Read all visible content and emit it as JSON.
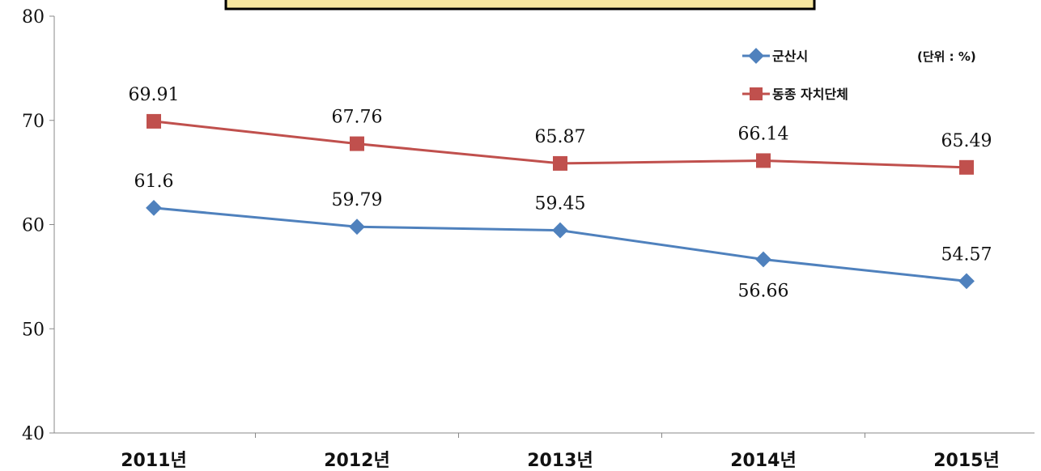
{
  "chart_data": {
    "type": "line",
    "categories": [
      "2011년",
      "2012년",
      "2013년",
      "2014년",
      "2015년"
    ],
    "series": [
      {
        "name": "군산시",
        "values": [
          61.6,
          59.79,
          59.45,
          56.66,
          54.57
        ],
        "labels": [
          "61.6",
          "59.79",
          "59.45",
          "56.66",
          "54.57"
        ],
        "color": "#4f81bd",
        "marker": "diamond"
      },
      {
        "name": "동종 자치단체",
        "values": [
          69.91,
          67.76,
          65.87,
          66.14,
          65.49
        ],
        "labels": [
          "69.91",
          "67.76",
          "65.87",
          "66.14",
          "65.49"
        ],
        "color": "#c0504d",
        "marker": "square"
      }
    ],
    "ylim": [
      40,
      80
    ],
    "yticks": [
      "40",
      "50",
      "60",
      "70",
      "80"
    ],
    "unit": "(단위 : %)",
    "grid": false,
    "legend_position": "top-right"
  }
}
